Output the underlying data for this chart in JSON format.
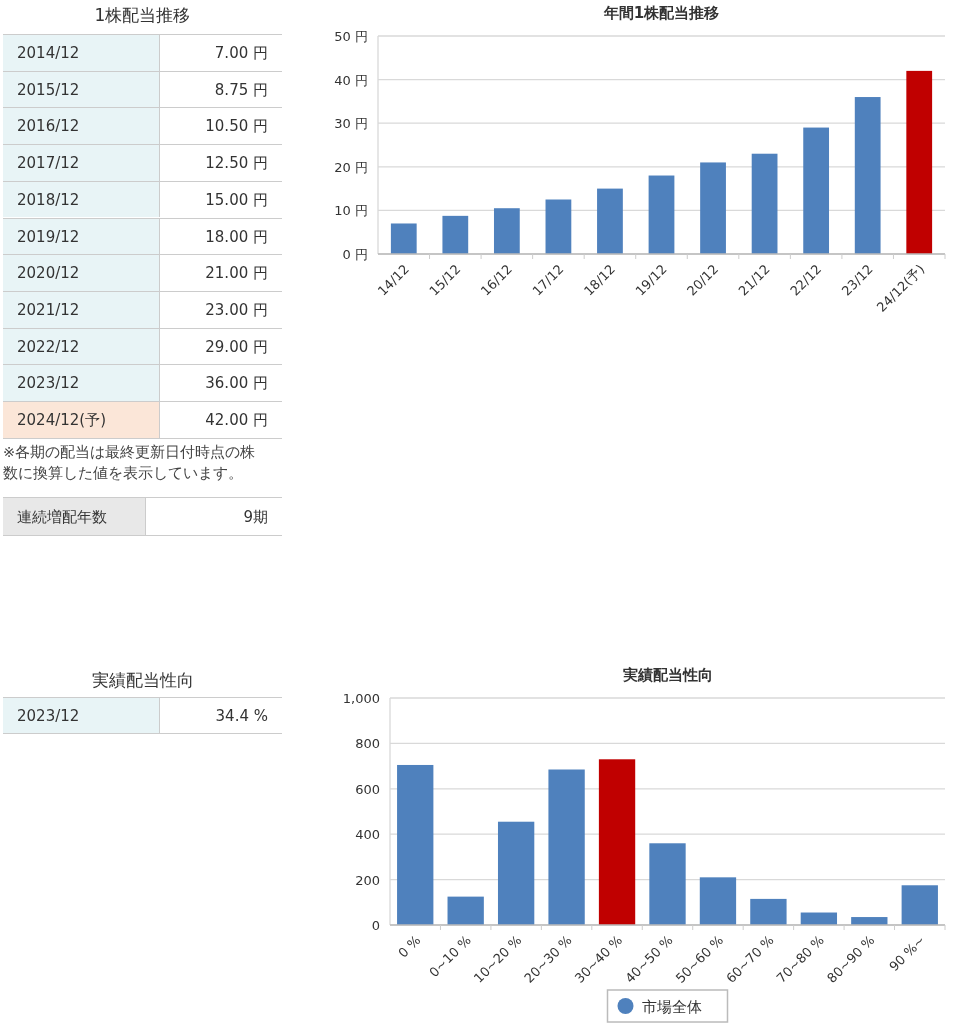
{
  "chart_data": [
    {
      "type": "other",
      "title": "1株配当推移",
      "categories": [
        "2014/12",
        "2015/12",
        "2016/12",
        "2017/12",
        "2018/12",
        "2019/12",
        "2020/12",
        "2021/12",
        "2022/12",
        "2023/12",
        "2024/12(予)"
      ],
      "value_labels": [
        "7.00 円",
        "8.75 円",
        "10.50 円",
        "12.50 円",
        "15.00 円",
        "18.00 円",
        "21.00 円",
        "23.00 円",
        "29.00 円",
        "36.00 円",
        "42.00 円"
      ],
      "colors": [
        "#e8f4f6",
        "#e8f4f6",
        "#e8f4f6",
        "#e8f4f6",
        "#e8f4f6",
        "#e8f4f6",
        "#e8f4f6",
        "#e8f4f6",
        "#e8f4f6",
        "#e8f4f6",
        "#fbe6d8"
      ],
      "annotations": [
        "※各期の配当は最終更新日付時点の株数に換算した値を表示しています。"
      ]
    },
    {
      "type": "bar",
      "title": "年間1株配当推移",
      "categories": [
        "14/12",
        "15/12",
        "16/12",
        "17/12",
        "18/12",
        "19/12",
        "20/12",
        "21/12",
        "22/12",
        "23/12",
        "24/12(予)"
      ],
      "values": [
        7,
        8.75,
        10.5,
        12.5,
        15,
        18,
        21,
        23,
        29,
        36,
        42
      ],
      "colors": [
        "#4f81bd",
        "#4f81bd",
        "#4f81bd",
        "#4f81bd",
        "#4f81bd",
        "#4f81bd",
        "#4f81bd",
        "#4f81bd",
        "#4f81bd",
        "#4f81bd",
        "#c00000"
      ],
      "ylim": [
        0,
        50
      ],
      "yticks": [
        {
          "value": 0,
          "label": "0 円"
        },
        {
          "value": 10,
          "label": "10 円"
        },
        {
          "value": 20,
          "label": "20 円"
        },
        {
          "value": 30,
          "label": "30 円"
        },
        {
          "value": 40,
          "label": "40 円"
        },
        {
          "value": 50,
          "label": "50 円"
        }
      ],
      "grid": "y"
    },
    {
      "type": "other",
      "categories": [
        "連続増配年数"
      ],
      "value_labels": [
        "9期"
      ],
      "colors": [
        "#e8e8e8"
      ]
    },
    {
      "type": "other",
      "title": "実績配当性向",
      "categories": [
        "2023/12"
      ],
      "value_labels": [
        "34.4 %"
      ],
      "colors": [
        "#e8f4f6"
      ]
    },
    {
      "type": "bar",
      "title": "実績配当性向",
      "categories": [
        "0 %",
        "0~10 %",
        "10~20 %",
        "20~30 %",
        "30~40 %",
        "40~50 %",
        "50~60 %",
        "60~70 %",
        "70~80 %",
        "80~90 %",
        "90 %~"
      ],
      "series": [
        {
          "name": "市場全体",
          "color": "#4f81bd",
          "values": [
            705,
            125,
            455,
            685,
            null,
            360,
            210,
            115,
            55,
            35,
            175
          ]
        },
        {
          "color": "#c00000",
          "values": [
            null,
            null,
            null,
            null,
            730,
            null,
            null,
            null,
            null,
            null,
            null
          ]
        }
      ],
      "ylim": [
        0,
        1000
      ],
      "yticks": [
        0,
        200,
        400,
        600,
        800,
        {
          "value": 1000,
          "label": "1,000"
        }
      ],
      "grid": "y",
      "legend": "bottom"
    }
  ]
}
